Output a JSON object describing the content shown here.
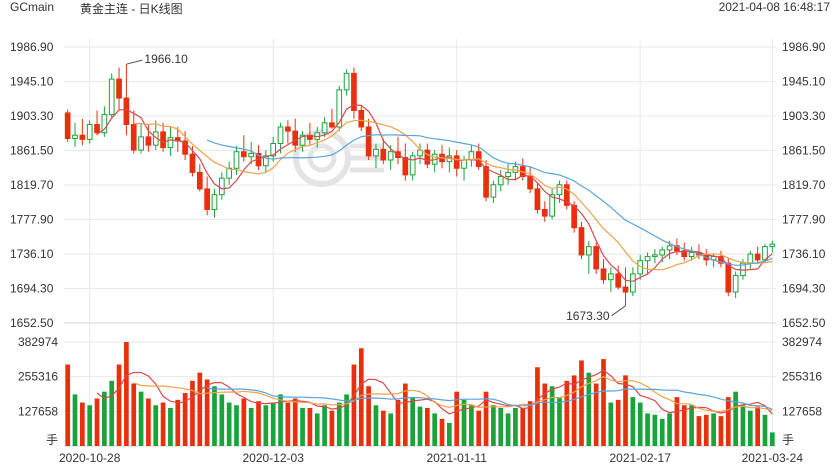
{
  "header": {
    "symbol": "GCmain",
    "title": "黄金主连 - 日K线图",
    "datetime": "2021-04-08 16:48:17"
  },
  "watermark": {
    "text": "金投网"
  },
  "colors": {
    "up": "#1aa33a",
    "down": "#e8300e",
    "ma5": "#d9484a",
    "ma10": "#f0a24a",
    "ma20": "#5aa5d8",
    "grid": "#e9e9e9",
    "axis_text": "#333333"
  },
  "chart_data": {
    "type": "candlestick",
    "price_axis": {
      "labels": [
        "1986.90",
        "1945.10",
        "1903.30",
        "1861.50",
        "1819.70",
        "1777.90",
        "1736.10",
        "1694.30",
        "1652.50"
      ],
      "ylim": [
        1652.5,
        1986.9
      ]
    },
    "volume_axis": {
      "labels": [
        "382974",
        "255316",
        "127658"
      ],
      "unit": "手",
      "ylim": [
        0,
        382974
      ]
    },
    "date_labels": [
      "2020-10-28",
      "2020-12-03",
      "2021-01-11",
      "2021-02-17",
      "2021-03-24"
    ],
    "annotations": [
      {
        "text": "1966.10",
        "kind": "high",
        "value": 1966.1
      },
      {
        "text": "1673.30",
        "kind": "low",
        "value": 1673.3
      }
    ],
    "candles": [
      [
        1907,
        1911,
        1872,
        1876,
        300000
      ],
      [
        1876,
        1895,
        1866,
        1880,
        190000
      ],
      [
        1880,
        1900,
        1868,
        1875,
        160000
      ],
      [
        1875,
        1898,
        1870,
        1893,
        150000
      ],
      [
        1893,
        1910,
        1880,
        1883,
        175000
      ],
      [
        1883,
        1915,
        1878,
        1905,
        200000
      ],
      [
        1905,
        1955,
        1900,
        1948,
        240000
      ],
      [
        1948,
        1962,
        1910,
        1925,
        300000
      ],
      [
        1925,
        1966.1,
        1880,
        1893,
        382974
      ],
      [
        1893,
        1910,
        1858,
        1862,
        230000
      ],
      [
        1862,
        1895,
        1858,
        1878,
        200000
      ],
      [
        1878,
        1893,
        1860,
        1868,
        175000
      ],
      [
        1868,
        1898,
        1862,
        1884,
        150000
      ],
      [
        1884,
        1895,
        1860,
        1865,
        160000
      ],
      [
        1865,
        1890,
        1855,
        1877,
        140000
      ],
      [
        1877,
        1890,
        1860,
        1873,
        170000
      ],
      [
        1873,
        1885,
        1850,
        1857,
        195000
      ],
      [
        1857,
        1867,
        1830,
        1835,
        240000
      ],
      [
        1835,
        1845,
        1812,
        1815,
        270000
      ],
      [
        1815,
        1830,
        1783,
        1790,
        245000
      ],
      [
        1790,
        1815,
        1780,
        1808,
        220000
      ],
      [
        1808,
        1835,
        1802,
        1828,
        190000
      ],
      [
        1828,
        1848,
        1820,
        1840,
        160000
      ],
      [
        1840,
        1867,
        1832,
        1860,
        150000
      ],
      [
        1860,
        1880,
        1848,
        1854,
        175000
      ],
      [
        1854,
        1872,
        1845,
        1858,
        140000
      ],
      [
        1858,
        1868,
        1838,
        1843,
        165000
      ],
      [
        1843,
        1862,
        1835,
        1855,
        150000
      ],
      [
        1855,
        1878,
        1848,
        1870,
        160000
      ],
      [
        1870,
        1895,
        1858,
        1890,
        190000
      ],
      [
        1890,
        1898,
        1870,
        1885,
        160000
      ],
      [
        1885,
        1900,
        1860,
        1868,
        175000
      ],
      [
        1868,
        1885,
        1860,
        1880,
        140000
      ],
      [
        1880,
        1895,
        1868,
        1875,
        140000
      ],
      [
        1875,
        1890,
        1865,
        1883,
        120000
      ],
      [
        1883,
        1902,
        1878,
        1895,
        150000
      ],
      [
        1895,
        1912,
        1888,
        1890,
        130000
      ],
      [
        1890,
        1940,
        1885,
        1935,
        160000
      ],
      [
        1935,
        1960,
        1928,
        1955,
        190000
      ],
      [
        1955,
        1962,
        1900,
        1910,
        300000
      ],
      [
        1910,
        1915,
        1885,
        1890,
        360000
      ],
      [
        1890,
        1900,
        1850,
        1855,
        220000
      ],
      [
        1855,
        1870,
        1840,
        1863,
        150000
      ],
      [
        1863,
        1876,
        1845,
        1850,
        130000
      ],
      [
        1850,
        1868,
        1838,
        1860,
        120000
      ],
      [
        1860,
        1878,
        1845,
        1853,
        170000
      ],
      [
        1853,
        1870,
        1825,
        1832,
        230000
      ],
      [
        1832,
        1860,
        1825,
        1855,
        180000
      ],
      [
        1855,
        1870,
        1845,
        1862,
        145000
      ],
      [
        1862,
        1870,
        1840,
        1845,
        140000
      ],
      [
        1845,
        1862,
        1835,
        1857,
        120000
      ],
      [
        1857,
        1868,
        1840,
        1848,
        100000
      ],
      [
        1848,
        1865,
        1835,
        1855,
        85000
      ],
      [
        1855,
        1862,
        1830,
        1840,
        200000
      ],
      [
        1840,
        1855,
        1825,
        1850,
        170000
      ],
      [
        1850,
        1868,
        1842,
        1860,
        150000
      ],
      [
        1860,
        1870,
        1838,
        1842,
        130000
      ],
      [
        1842,
        1850,
        1800,
        1805,
        200000
      ],
      [
        1805,
        1825,
        1798,
        1820,
        150000
      ],
      [
        1820,
        1838,
        1812,
        1830,
        140000
      ],
      [
        1830,
        1845,
        1820,
        1835,
        120000
      ],
      [
        1835,
        1848,
        1825,
        1842,
        140000
      ],
      [
        1842,
        1852,
        1825,
        1830,
        140000
      ],
      [
        1830,
        1842,
        1810,
        1815,
        165000
      ],
      [
        1815,
        1822,
        1785,
        1790,
        290000
      ],
      [
        1790,
        1800,
        1775,
        1782,
        230000
      ],
      [
        1782,
        1815,
        1778,
        1808,
        220000
      ],
      [
        1808,
        1825,
        1798,
        1820,
        180000
      ],
      [
        1820,
        1825,
        1790,
        1795,
        240000
      ],
      [
        1795,
        1800,
        1762,
        1768,
        260000
      ],
      [
        1768,
        1775,
        1730,
        1735,
        315000
      ],
      [
        1735,
        1752,
        1712,
        1745,
        270000
      ],
      [
        1745,
        1750,
        1712,
        1718,
        230000
      ],
      [
        1718,
        1730,
        1700,
        1705,
        320000
      ],
      [
        1705,
        1720,
        1690,
        1712,
        160000
      ],
      [
        1712,
        1722,
        1693,
        1696,
        170000
      ],
      [
        1696,
        1720,
        1673.3,
        1690,
        260000
      ],
      [
        1690,
        1720,
        1685,
        1712,
        180000
      ],
      [
        1712,
        1735,
        1705,
        1728,
        160000
      ],
      [
        1728,
        1738,
        1712,
        1733,
        120000
      ],
      [
        1733,
        1742,
        1725,
        1735,
        115000
      ],
      [
        1735,
        1745,
        1726,
        1741,
        100000
      ],
      [
        1741,
        1752,
        1730,
        1746,
        120000
      ],
      [
        1746,
        1755,
        1735,
        1740,
        180000
      ],
      [
        1740,
        1750,
        1728,
        1733,
        150000
      ],
      [
        1733,
        1745,
        1728,
        1738,
        150000
      ],
      [
        1738,
        1748,
        1730,
        1735,
        110000
      ],
      [
        1735,
        1742,
        1722,
        1729,
        115000
      ],
      [
        1729,
        1736,
        1720,
        1733,
        120000
      ],
      [
        1733,
        1740,
        1720,
        1725,
        110000
      ],
      [
        1725,
        1732,
        1685,
        1690,
        180000
      ],
      [
        1690,
        1715,
        1683,
        1710,
        200000
      ],
      [
        1710,
        1730,
        1705,
        1725,
        150000
      ],
      [
        1725,
        1740,
        1718,
        1736,
        130000
      ],
      [
        1736,
        1745,
        1725,
        1729,
        145000
      ],
      [
        1729,
        1748,
        1725,
        1745,
        115000
      ],
      [
        1745,
        1752,
        1738,
        1748,
        50000
      ]
    ]
  }
}
